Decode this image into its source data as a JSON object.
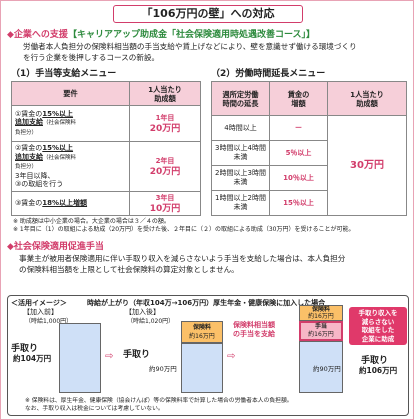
{
  "title": "「106万円の壁」への対応",
  "section1": {
    "marker": "◆",
    "label": "企業への支援",
    "bracket": "【キャリアアップ助成金「社会保険適用時処遇改善コース」】"
  },
  "intro": [
    "労働者本人負担分の保険料相当額の手当支給や賃上げなどにより、壁を意識せず働ける環境づくり",
    "を行う企業を後押しするコースの新設。"
  ],
  "menu1": {
    "heading": "（1）手当等支給メニュー",
    "col_req": "要件",
    "col_amt": [
      "1人当たり",
      "助成額"
    ],
    "rows": [
      {
        "lines": [
          "①賃金の",
          "15%以上",
          "追加支給",
          "（社会保険料",
          "負担分）"
        ],
        "amt_label": "1年目",
        "amt": "20万円"
      },
      {
        "lines": [
          "②賃金の",
          "15%以上",
          "追加支給",
          "（社会保険料",
          "負担分）",
          "3年目以降、",
          "③の取組を行う"
        ],
        "amt_label": "2年目",
        "amt": "20万円"
      },
      {
        "lines": [
          "③賃金の",
          "18%以上増額"
        ],
        "amt_label": "3年目",
        "amt": "10万円"
      }
    ]
  },
  "menu2": {
    "heading": "（2）労働時間延長メニュー",
    "cols": [
      "週所定労働",
      "時間の延長",
      "賃金の",
      "増額",
      "1人当たり",
      "助成額"
    ],
    "rows": [
      {
        "h": "4時間以上",
        "w": "ー"
      },
      {
        "h": "3時間以上4時間未満",
        "w": "5％以上"
      },
      {
        "h": "2時間以上3時間未満",
        "w": "10％以上"
      },
      {
        "h": "1時間以上2時間未満",
        "w": "15％以上"
      }
    ],
    "amount": "30万円"
  },
  "notes": [
    "※ 助成額は中小企業の場合。大企業の場合は３／４の額。",
    "※ 1年目に（1）の取組による助成（20万円）を受けた後、２年目に（２）の取組による助成（30万円）を受けることが可能。"
  ],
  "section2": {
    "marker": "◆",
    "label": "社会保険適用促進手当"
  },
  "desc": [
    "事業主が被用者保険適用に伴い手取り収入を減らさないよう手当を支給した場合は、本人負担分",
    "の保険料相当額を上限として社会保険料の算定対象としません。"
  ],
  "diagram": {
    "tag": "＜活用イメージ＞",
    "headline": "時給が上がり（年収104万→106万円）厚生年金・健康保険に加入した場合",
    "before_label": "【加入前】",
    "before_rate": "（時給1,000円）",
    "after_label": "【加入後】",
    "after_rate": "（時給1,020円）",
    "takehome": "手取り",
    "t1": "約104万円",
    "t2": "約90万円",
    "premium": "保険料",
    "premium_amt": "約16万円",
    "allowance_note": [
      "保険料相当額",
      "の手当を支給"
    ],
    "allowance": "手当",
    "allowance_amt": "約16万円",
    "callout": [
      "手取り収入を",
      "減らさない",
      "取組をした",
      "企業に助成"
    ],
    "final": "手取り",
    "final_amt": "約106万円",
    "footnote": [
      "※ 保険料は、厚生年金、健康保険（協会けんぽ）等の保険料率で計算した場合の労働者本人の負担額。",
      "なお、手取り収入は税金については考慮していない。"
    ]
  }
}
